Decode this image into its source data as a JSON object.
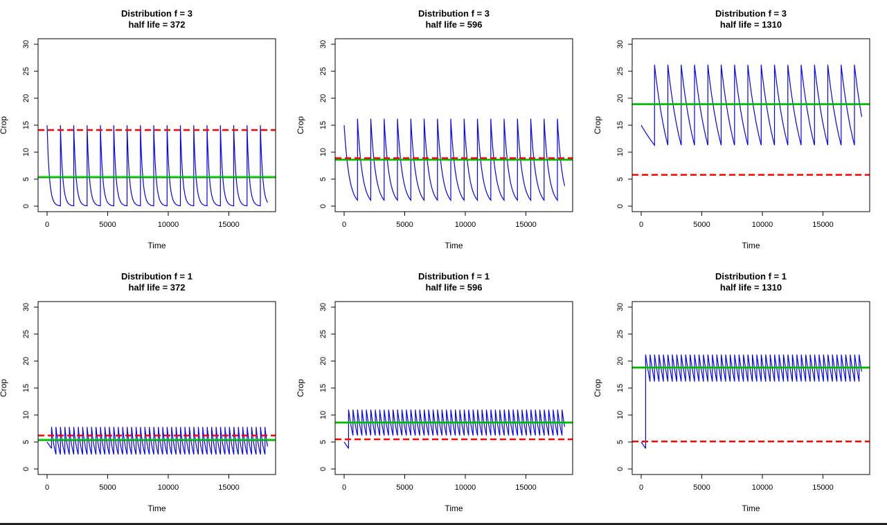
{
  "chart_data": [
    {
      "type": "line",
      "title": "Distribution f = 3",
      "subtitle": "half life = 372",
      "xlabel": "Time",
      "ylabel": "Crop",
      "xlim": [
        0,
        18000
      ],
      "ylim": [
        0,
        30
      ],
      "xticks": [
        0,
        5000,
        10000,
        15000
      ],
      "yticks": [
        0,
        5,
        10,
        15,
        20,
        25,
        30
      ],
      "dose_times": [
        0,
        1100,
        2200,
        3300,
        4400,
        5500,
        6600,
        7700,
        8800,
        9900,
        11000,
        12100,
        13200,
        14300,
        15400,
        16500,
        17600
      ],
      "series": [
        {
          "role": "concentration",
          "color": "#0000ff",
          "start": 15.0,
          "peak": 15.0,
          "trough": 0.0,
          "end": 0.8,
          "x_end": 18200
        },
        {
          "role": "mean",
          "color": "#000000",
          "value": 5.3
        },
        {
          "role": "green-reference",
          "color": "#00cc00",
          "value": 5.4
        },
        {
          "role": "red-dashed-reference",
          "color": "#ff0000",
          "value": 14.1
        }
      ]
    },
    {
      "type": "line",
      "title": "Distribution f = 3",
      "subtitle": "half life = 596",
      "xlabel": "Time",
      "ylabel": "Crop",
      "xlim": [
        0,
        18000
      ],
      "ylim": [
        0,
        30
      ],
      "xticks": [
        0,
        5000,
        10000,
        15000
      ],
      "yticks": [
        0,
        5,
        10,
        15,
        20,
        25,
        30
      ],
      "dose_times": [
        0,
        1100,
        2200,
        3300,
        4400,
        5500,
        6600,
        7700,
        8800,
        9900,
        11000,
        12100,
        13200,
        14300,
        15400,
        16500,
        17600
      ],
      "series": [
        {
          "role": "concentration",
          "color": "#0000ff",
          "start": 15.0,
          "peak": 16.2,
          "trough": 1.1,
          "end": 5.1,
          "x_end": 18200
        },
        {
          "role": "mean",
          "color": "#000000",
          "value": 8.6
        },
        {
          "role": "green-reference",
          "color": "#00cc00",
          "value": 8.6
        },
        {
          "role": "red-dashed-reference",
          "color": "#ff0000",
          "value": 8.9
        }
      ]
    },
    {
      "type": "line",
      "title": "Distribution f = 3",
      "subtitle": "half life = 1310",
      "xlabel": "Time",
      "ylabel": "Crop",
      "xlim": [
        0,
        18000
      ],
      "ylim": [
        0,
        30
      ],
      "xticks": [
        0,
        5000,
        10000,
        15000
      ],
      "yticks": [
        0,
        5,
        10,
        15,
        20,
        25,
        30
      ],
      "dose_times": [
        0,
        1100,
        2200,
        3300,
        4400,
        5500,
        6600,
        7700,
        8800,
        9900,
        11000,
        12100,
        13200,
        14300,
        15400,
        16500,
        17600
      ],
      "series": [
        {
          "role": "concentration",
          "color": "#0000ff",
          "start": 15.0,
          "peak": 26.2,
          "trough": 11.3,
          "end": 16.1,
          "x_end": 18200
        },
        {
          "role": "mean",
          "color": "#000000",
          "value": 18.9
        },
        {
          "role": "green-reference",
          "color": "#00cc00",
          "value": 18.9
        },
        {
          "role": "red-dashed-reference",
          "color": "#ff0000",
          "value": 5.8
        }
      ]
    },
    {
      "type": "line",
      "title": "Distribution f = 1",
      "subtitle": "half life = 372",
      "xlabel": "Time",
      "ylabel": "Crop",
      "xlim": [
        0,
        18000
      ],
      "ylim": [
        0,
        30
      ],
      "xticks": [
        0,
        5000,
        10000,
        15000
      ],
      "yticks": [
        0,
        5,
        10,
        15,
        20,
        25,
        30
      ],
      "dose_interval": 367,
      "first_dose": 367,
      "series": [
        {
          "role": "concentration",
          "color": "#0000ff",
          "start": 5.0,
          "peak": 7.8,
          "trough": 2.7,
          "end": 2.9,
          "x_end": 18200
        },
        {
          "role": "mean",
          "color": "#000000",
          "value": 5.3
        },
        {
          "role": "green-reference",
          "color": "#00cc00",
          "value": 5.4
        },
        {
          "role": "red-dashed-reference",
          "color": "#ff0000",
          "value": 6.2
        }
      ]
    },
    {
      "type": "line",
      "title": "Distribution f = 1",
      "subtitle": "half life = 596",
      "xlabel": "Time",
      "ylabel": "Crop",
      "xlim": [
        0,
        18000
      ],
      "ylim": [
        0,
        30
      ],
      "xticks": [
        0,
        5000,
        10000,
        15000
      ],
      "yticks": [
        0,
        5,
        10,
        15,
        20,
        25,
        30
      ],
      "dose_interval": 367,
      "first_dose": 367,
      "series": [
        {
          "role": "concentration",
          "color": "#0000ff",
          "start": 5.0,
          "peak": 11.0,
          "trough": 6.2,
          "end": 6.1,
          "x_end": 18200
        },
        {
          "role": "mean",
          "color": "#000000",
          "value": 8.6
        },
        {
          "role": "green-reference",
          "color": "#00cc00",
          "value": 8.6
        },
        {
          "role": "red-dashed-reference",
          "color": "#ff0000",
          "value": 5.5
        }
      ]
    },
    {
      "type": "line",
      "title": "Distribution f = 1",
      "subtitle": "half life = 1310",
      "xlabel": "Time",
      "ylabel": "Crop",
      "xlim": [
        0,
        18000
      ],
      "ylim": [
        0,
        30
      ],
      "xticks": [
        0,
        5000,
        10000,
        15000
      ],
      "yticks": [
        0,
        5,
        10,
        15,
        20,
        25,
        30
      ],
      "dose_interval": 367,
      "first_dose": 367,
      "series": [
        {
          "role": "concentration",
          "color": "#0000ff",
          "start": 5.0,
          "peak": 21.2,
          "trough": 16.2,
          "end": 16.2,
          "x_end": 18200
        },
        {
          "role": "mean",
          "color": "#000000",
          "value": 18.8
        },
        {
          "role": "green-reference",
          "color": "#00cc00",
          "value": 18.8
        },
        {
          "role": "red-dashed-reference",
          "color": "#ff0000",
          "value": 5.1
        }
      ]
    }
  ]
}
